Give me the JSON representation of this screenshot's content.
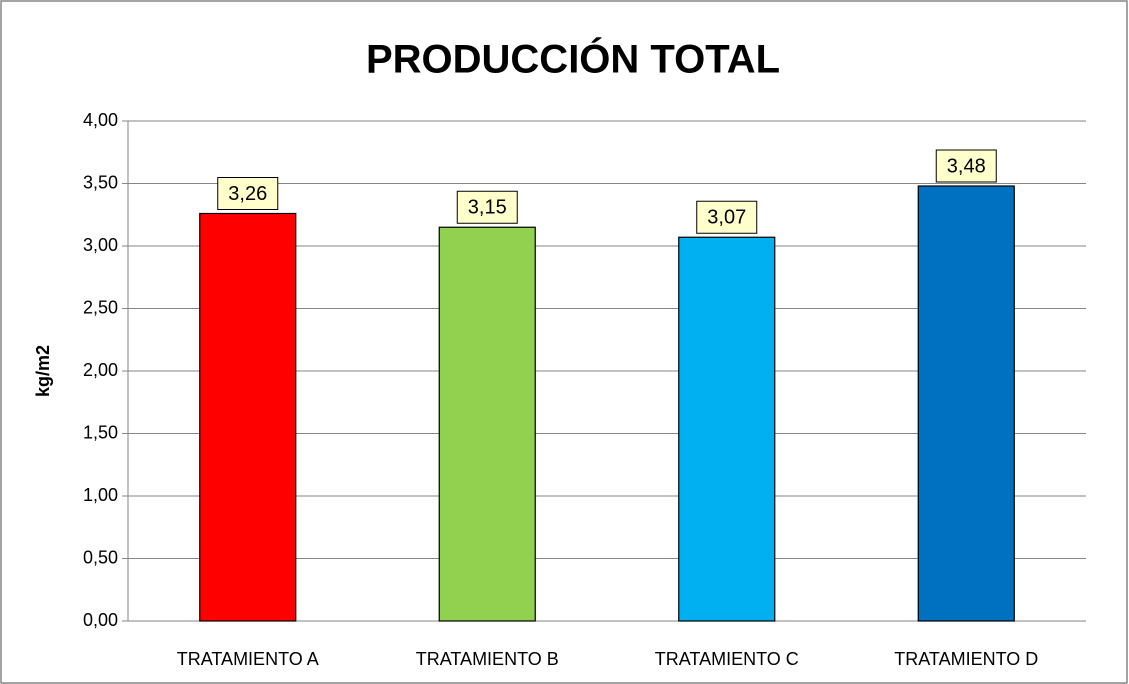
{
  "chart_data": {
    "type": "bar",
    "title": "PRODUCCIÓN TOTAL",
    "y_label": "kg/m2",
    "categories": [
      "TRATAMIENTO A",
      "TRATAMIENTO B",
      "TRATAMIENTO C",
      "TRATAMIENTO D"
    ],
    "values": [
      3.26,
      3.15,
      3.07,
      3.48
    ],
    "value_labels": [
      "3,26",
      "3,15",
      "3,07",
      "3,48"
    ],
    "colors": [
      "#ff0000",
      "#92d050",
      "#00b0f0",
      "#0070c0"
    ],
    "ylim": [
      0,
      4
    ],
    "yticks": [
      {
        "value": 0,
        "label": "0,00"
      },
      {
        "value": 0.5,
        "label": "0,50"
      },
      {
        "value": 1,
        "label": "1,00"
      },
      {
        "value": 1.5,
        "label": "1,50"
      },
      {
        "value": 2,
        "label": "2,00"
      },
      {
        "value": 2.5,
        "label": "2,50"
      },
      {
        "value": 3,
        "label": "3,00"
      },
      {
        "value": 3.5,
        "label": "3,50"
      },
      {
        "value": 4,
        "label": "4,00"
      }
    ],
    "grid": true
  }
}
